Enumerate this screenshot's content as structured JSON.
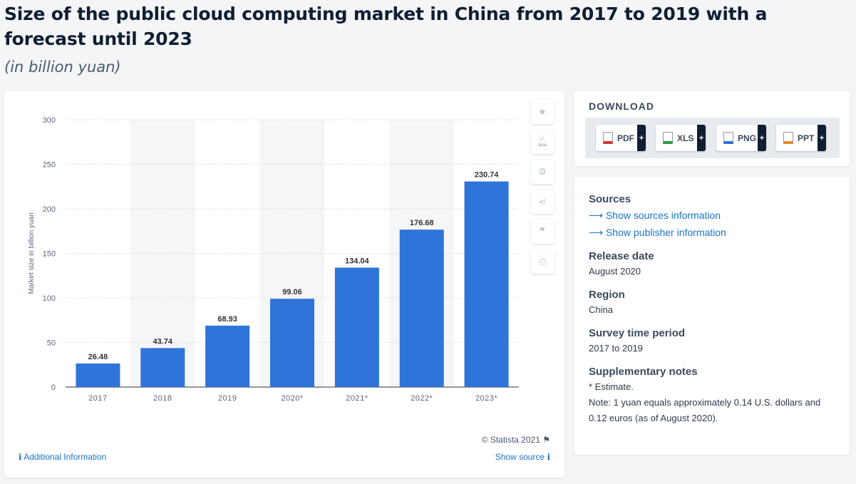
{
  "title": "Size of the public cloud computing market in China from 2017 to 2019 with a forecast until 2023",
  "subtitle": "(in billion yuan)",
  "chart_data": {
    "type": "bar",
    "categories": [
      "2017",
      "2018",
      "2019",
      "2020*",
      "2021*",
      "2022*",
      "2023*"
    ],
    "values": [
      26.48,
      43.74,
      68.93,
      99.06,
      134.04,
      176.68,
      230.74
    ],
    "value_labels": [
      "26.48",
      "43.74",
      "68.93",
      "99.06",
      "134.04",
      "176.68",
      "230.74"
    ],
    "ylabel": "Market size in billion yuan",
    "xlabel": "",
    "ylim": [
      0,
      300
    ],
    "yticks": [
      "0",
      "50",
      "100",
      "150",
      "200",
      "250",
      "300"
    ],
    "grid": true,
    "bar_color": "#2f74d9"
  },
  "toolbar": {
    "icons": [
      "star-icon",
      "bell-icon",
      "gear-icon",
      "share-icon",
      "quote-icon",
      "print-icon"
    ]
  },
  "footer": {
    "copyright": "© Statista 2021",
    "additional_info": "Additional Information",
    "show_source": "Show source"
  },
  "download": {
    "title": "DOWNLOAD",
    "buttons": [
      {
        "label": "PDF",
        "color": "#d9342b"
      },
      {
        "label": "XLS",
        "color": "#2e9a3b"
      },
      {
        "label": "PNG",
        "color": "#2f74d9"
      },
      {
        "label": "PPT",
        "color": "#e8872b"
      }
    ]
  },
  "info": {
    "sources_heading": "Sources",
    "show_sources": "Show sources information",
    "show_publisher": "Show publisher information",
    "release_heading": "Release date",
    "release_value": "August 2020",
    "region_heading": "Region",
    "region_value": "China",
    "survey_heading": "Survey time period",
    "survey_value": "2017 to 2019",
    "notes_heading": "Supplementary notes",
    "notes_line1": "* Estimate.",
    "notes_line2": "Note: 1 yuan equals approximately 0.14 U.S. dollars and 0.12 euros (as of August 2020)."
  }
}
